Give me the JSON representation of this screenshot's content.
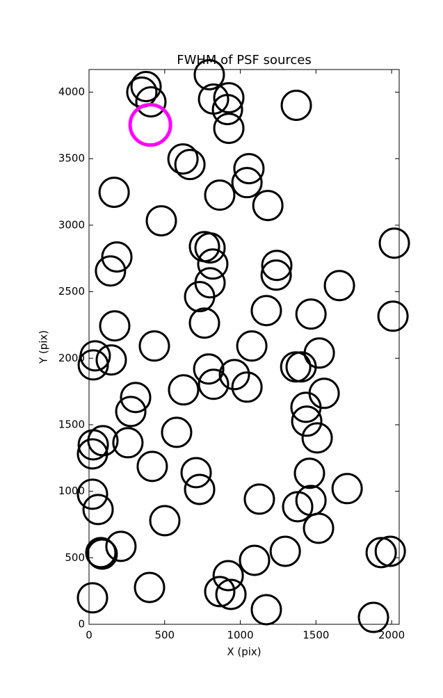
{
  "chart_data": {
    "type": "scatter",
    "title": "FWHM of PSF sources",
    "x_label": "X (pix)",
    "y_label": "Y (pix)",
    "xlim": [
      0,
      2050
    ],
    "ylim": [
      0,
      4170
    ],
    "xticks": [
      0,
      500,
      1000,
      1500,
      2000
    ],
    "yticks": [
      0,
      500,
      1000,
      1500,
      2000,
      2500,
      3000,
      3500,
      4000
    ],
    "series": [
      {
        "color": "#000000",
        "x": [
          377,
          349,
          409,
          795,
          823,
          924,
          915,
          924,
          1370,
          621,
          667,
          1057,
          1044,
          864,
          1182,
          166,
          478,
          184,
          142,
          763,
          800,
          818,
          800,
          731,
          1241,
          1237,
          1655,
          763,
          1172,
          1467,
          2009,
          2018,
          170,
          41,
          28,
          147,
          432,
          1076,
          791,
          961,
          823,
          1044,
          625,
          1366,
          1402,
          1522,
          1554,
          1434,
          1439,
          1508,
          308,
          276,
          257,
          92,
          28,
          23,
          579,
          708,
          731,
          418,
          23,
          60,
          1706,
          1126,
          1379,
          1467,
          1457,
          1517,
          501,
          211,
          78,
          87,
          1297,
          1094,
          920,
          864,
          938,
          400,
          23,
          1172,
          1880,
          1931,
          1991
        ],
        "y": [
          4042,
          4000,
          3927,
          4131,
          3948,
          3958,
          3869,
          3728,
          3901,
          3498,
          3456,
          3425,
          3320,
          3226,
          3148,
          3247,
          3033,
          2761,
          2656,
          2839,
          2829,
          2708,
          2567,
          2463,
          2698,
          2625,
          2546,
          2264,
          2358,
          2332,
          2316,
          2865,
          2243,
          2018,
          1950,
          1987,
          2092,
          2092,
          1919,
          1877,
          1804,
          1783,
          1762,
          1935,
          1935,
          2039,
          1736,
          1631,
          1527,
          1401,
          1705,
          1600,
          1365,
          1380,
          1349,
          1281,
          1443,
          1140,
          1014,
          1187,
          978,
          863,
          1020,
          941,
          884,
          931,
          1135,
          722,
          779,
          586,
          539,
          528,
          549,
          481,
          366,
          246,
          225,
          277,
          199,
          110,
          52,
          539,
          549
        ]
      },
      {
        "color": "#ff00ff",
        "x": [
          405
        ],
        "y": [
          3754
        ]
      }
    ]
  }
}
